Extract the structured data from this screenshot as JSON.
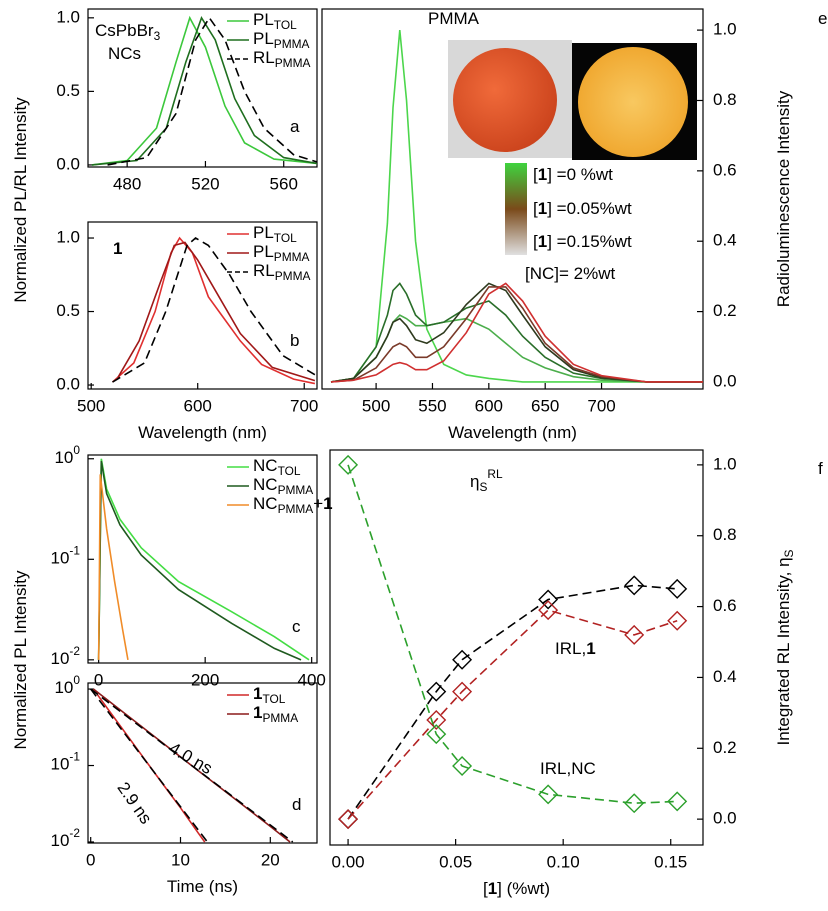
{
  "chart_data": [
    {
      "type": "line",
      "xlim": [
        460,
        577
      ],
      "xticks": [
        480,
        520,
        560
      ],
      "ylim": [
        -0.014,
        1.06
      ],
      "yticks": [
        {
          "value": 0,
          "label": "0.0"
        },
        {
          "value": 0.5,
          "label": "0.5"
        },
        {
          "value": 1,
          "label": "1.0"
        }
      ],
      "ylabel": [
        {
          "text": "Normalized PL/RL Intensity"
        }
      ],
      "legend": "upper right",
      "series": [
        {
          "name": [
            {
              "text": "PL"
            },
            {
              "text": "TOL",
              "style": "sub"
            }
          ],
          "color": "#3cc83c",
          "x": [
            462,
            480,
            495,
            505,
            512,
            520,
            530,
            540,
            555,
            577
          ],
          "values": [
            0,
            0.03,
            0.25,
            0.7,
            1.0,
            0.8,
            0.4,
            0.15,
            0.04,
            0.01
          ]
        },
        {
          "name": [
            {
              "text": "PL"
            },
            {
              "text": "PMMA",
              "style": "sub"
            }
          ],
          "color": "#1f6e1f",
          "x": [
            462,
            485,
            500,
            510,
            518,
            525,
            535,
            545,
            560,
            577
          ],
          "values": [
            0,
            0.03,
            0.25,
            0.7,
            1.0,
            0.85,
            0.45,
            0.2,
            0.05,
            0.01
          ]
        },
        {
          "name": [
            {
              "text": "RL"
            },
            {
              "text": "PMMA",
              "style": "sub"
            }
          ],
          "color": "#000000",
          "dash": true,
          "x": [
            470,
            490,
            505,
            515,
            522,
            530,
            540,
            550,
            565,
            577
          ],
          "values": [
            0,
            0.05,
            0.35,
            0.85,
            1.0,
            0.85,
            0.5,
            0.25,
            0.07,
            0.02
          ]
        }
      ],
      "annotations": [
        {
          "parts": [
            {
              "text": "CsPbBr"
            },
            {
              "text": "3",
              "style": "sub"
            }
          ]
        },
        {
          "parts": [
            {
              "text": "NCs"
            }
          ]
        },
        {
          "parts": [
            {
              "text": "a"
            }
          ]
        }
      ]
    },
    {
      "type": "line",
      "xlim": [
        497,
        712
      ],
      "xticks": [
        500,
        600,
        700
      ],
      "ylim": [
        -0.027,
        1.109
      ],
      "yticks": [
        {
          "value": 0,
          "label": "0.0"
        },
        {
          "value": 0.5,
          "label": "0.5"
        },
        {
          "value": 1,
          "label": "1.0"
        }
      ],
      "xlabel": [
        {
          "text": "Wavelength (nm)"
        }
      ],
      "legend": "upper right",
      "series": [
        {
          "name": [
            {
              "text": "PL"
            },
            {
              "text": "TOL",
              "style": "sub"
            }
          ],
          "color": "#e03030",
          "x": [
            520,
            540,
            560,
            575,
            583,
            595,
            610,
            625,
            640,
            660,
            690,
            710
          ],
          "values": [
            0.02,
            0.15,
            0.5,
            0.9,
            1.0,
            0.9,
            0.6,
            0.45,
            0.3,
            0.14,
            0.04,
            0.01
          ]
        },
        {
          "name": [
            {
              "text": "PL"
            },
            {
              "text": "PMMA",
              "style": "sub"
            }
          ],
          "color": "#a01818",
          "x": [
            525,
            545,
            565,
            578,
            588,
            600,
            620,
            640,
            670,
            710
          ],
          "values": [
            0.05,
            0.3,
            0.7,
            0.95,
            0.97,
            0.85,
            0.6,
            0.35,
            0.12,
            0.03
          ]
        },
        {
          "name": [
            {
              "text": "RL"
            },
            {
              "text": "PMMA",
              "style": "sub"
            }
          ],
          "color": "#000000",
          "dash": true,
          "x": [
            520,
            550,
            570,
            590,
            598,
            610,
            630,
            650,
            680,
            710
          ],
          "values": [
            0.02,
            0.15,
            0.5,
            0.95,
            1.0,
            0.95,
            0.75,
            0.5,
            0.2,
            0.07
          ]
        }
      ],
      "annotations": [
        {
          "parts": [
            {
              "text": "1",
              "style": "bold"
            }
          ]
        },
        {
          "parts": [
            {
              "text": "b"
            }
          ]
        }
      ]
    },
    {
      "type": "line",
      "xlim": [
        452,
        790
      ],
      "xticks": [
        500,
        550,
        600,
        650,
        700
      ],
      "y2lim": [
        -0.02,
        1.06
      ],
      "y2ticks": [
        {
          "value": 0,
          "label": "0.0"
        },
        {
          "value": 0.2,
          "label": "0.2"
        },
        {
          "value": 0.4,
          "label": "0.4"
        },
        {
          "value": 0.6,
          "label": "0.6"
        },
        {
          "value": 0.8,
          "label": "0.8"
        },
        {
          "value": 1,
          "label": "1.0"
        }
      ],
      "xlabel": [
        {
          "text": "Wavelength (nm)"
        }
      ],
      "y2label": [
        {
          "text": "Radioluminescence Intensity"
        }
      ],
      "x": [
        460,
        480,
        500,
        510,
        515,
        521,
        527,
        535,
        545,
        560,
        580,
        600,
        615,
        630,
        650,
        675,
        700,
        740,
        790
      ],
      "series": [
        {
          "color": "#4cd64c",
          "axis": "y2",
          "values": [
            0,
            0.01,
            0.1,
            0.45,
            0.78,
            1.0,
            0.8,
            0.4,
            0.15,
            0.05,
            0.02,
            0.01,
            0.005,
            0,
            0,
            0,
            0,
            0,
            0
          ]
        },
        {
          "color": "#4cae4c",
          "axis": "y2",
          "values": [
            0,
            0.01,
            0.07,
            0.13,
            0.17,
            0.19,
            0.18,
            0.16,
            0.16,
            0.17,
            0.18,
            0.15,
            0.11,
            0.07,
            0.04,
            0.015,
            0.005,
            0,
            0
          ]
        },
        {
          "color": "#2a6e2a",
          "axis": "y2",
          "values": [
            0,
            0.01,
            0.1,
            0.19,
            0.26,
            0.28,
            0.25,
            0.19,
            0.16,
            0.17,
            0.21,
            0.23,
            0.19,
            0.13,
            0.07,
            0.025,
            0.01,
            0,
            0
          ]
        },
        {
          "color": "#2e3a1e",
          "axis": "y2",
          "values": [
            0,
            0.01,
            0.07,
            0.13,
            0.17,
            0.18,
            0.16,
            0.12,
            0.11,
            0.14,
            0.22,
            0.28,
            0.26,
            0.19,
            0.1,
            0.035,
            0.012,
            0,
            0
          ]
        },
        {
          "color": "#7a3a2a",
          "axis": "y2",
          "values": [
            0,
            0.005,
            0.04,
            0.08,
            0.1,
            0.11,
            0.1,
            0.07,
            0.07,
            0.1,
            0.18,
            0.27,
            0.27,
            0.21,
            0.11,
            0.04,
            0.015,
            0,
            0
          ]
        },
        {
          "color": "#d03030",
          "axis": "y2",
          "values": [
            0,
            0.005,
            0.02,
            0.04,
            0.05,
            0.055,
            0.05,
            0.035,
            0.035,
            0.06,
            0.14,
            0.25,
            0.28,
            0.23,
            0.13,
            0.05,
            0.018,
            0,
            0
          ]
        }
      ],
      "annotations": [
        {
          "parts": [
            {
              "text": "PMMA"
            }
          ]
        },
        {
          "parts": [
            {
              "text": "["
            },
            {
              "text": "1",
              "style": "bold"
            },
            {
              "text": "] =0 %wt"
            }
          ]
        },
        {
          "parts": [
            {
              "text": "["
            },
            {
              "text": "1",
              "style": "bold"
            },
            {
              "text": "] =0.05%wt"
            }
          ]
        },
        {
          "parts": [
            {
              "text": "["
            },
            {
              "text": "1",
              "style": "bold"
            },
            {
              "text": "] =0.15%wt"
            }
          ]
        },
        {
          "parts": [
            {
              "text": "[NC]= 2%wt"
            }
          ]
        },
        {
          "parts": [
            {
              "text": "e"
            }
          ]
        }
      ]
    },
    {
      "type": "line",
      "ylog": true,
      "xlim": [
        -20,
        410
      ],
      "xticks": [
        0,
        200,
        400
      ],
      "ylim": [
        0.0093,
        1.09
      ],
      "yticks": [
        {
          "value": 1,
          "label": "10",
          "exponent": "0"
        },
        {
          "value": 0.1,
          "label": "10",
          "exponent": "-1"
        },
        {
          "value": 0.01,
          "label": "10",
          "exponent": "-2"
        }
      ],
      "ylabel": [
        {
          "text": "Normalized PL Intensity"
        }
      ],
      "legend": "upper right",
      "series": [
        {
          "name": [
            {
              "text": "NC"
            },
            {
              "text": "TOL",
              "style": "sub"
            }
          ],
          "color": "#44dd44",
          "x": [
            0,
            5,
            15,
            40,
            80,
            150,
            250,
            330,
            395
          ],
          "values": [
            0.01,
            1,
            0.5,
            0.25,
            0.13,
            0.06,
            0.03,
            0.017,
            0.01
          ]
        },
        {
          "name": [
            {
              "text": "NC"
            },
            {
              "text": "PMMA",
              "style": "sub"
            }
          ],
          "color": "#1f5a1f",
          "x": [
            0,
            5,
            15,
            40,
            80,
            150,
            250,
            330,
            380
          ],
          "values": [
            0.01,
            0.95,
            0.45,
            0.22,
            0.11,
            0.05,
            0.023,
            0.013,
            0.01
          ]
        },
        {
          "name": [
            {
              "text": "NC"
            },
            {
              "text": "PMMA",
              "style": "sub"
            },
            {
              "text": "+"
            },
            {
              "text": "1",
              "style": "bold"
            }
          ],
          "color": "#f08c28",
          "x": [
            0,
            3,
            15,
            30,
            45,
            55
          ],
          "values": [
            0.01,
            0.7,
            0.2,
            0.06,
            0.02,
            0.01
          ]
        }
      ],
      "annotations": [
        {
          "parts": [
            {
              "text": "c"
            }
          ]
        }
      ]
    },
    {
      "type": "line",
      "ylog": true,
      "xlim": [
        -0.3,
        25.2
      ],
      "xticks": [
        0,
        10,
        20
      ],
      "ylim": [
        0.0097,
        1.2
      ],
      "yticks": [
        {
          "value": 1,
          "label": "10",
          "exponent": "0"
        },
        {
          "value": 0.1,
          "label": "10",
          "exponent": "-1"
        },
        {
          "value": 0.01,
          "label": "10",
          "exponent": "-2"
        }
      ],
      "xlabel": [
        {
          "text": "Time (ns)"
        }
      ],
      "legend": "upper right",
      "series": [
        {
          "name": [
            {
              "text": "1",
              "style": "bold"
            },
            {
              "text": "TOL",
              "style": "sub"
            }
          ],
          "color": "#d02828",
          "x": [
            0.3,
            2,
            4,
            6,
            8,
            10,
            12,
            12.7
          ],
          "values": [
            1,
            0.53,
            0.254,
            0.121,
            0.058,
            0.028,
            0.013,
            0.01
          ]
        },
        {
          "name": [
            {
              "text": "1",
              "style": "bold"
            },
            {
              "text": "PMMA",
              "style": "sub"
            }
          ],
          "color": "#8b1a1a",
          "x": [
            0.3,
            4,
            8,
            12,
            16,
            20,
            22.2
          ],
          "values": [
            1,
            0.46,
            0.198,
            0.085,
            0.037,
            0.016,
            0.01
          ]
        },
        {
          "color": "#000000",
          "dash": true,
          "x": [
            0,
            22.5
          ],
          "values": [
            1,
            0.01
          ]
        },
        {
          "color": "#000000",
          "dash": true,
          "x": [
            0,
            13
          ],
          "values": [
            1,
            0.01
          ]
        }
      ],
      "annotations": [
        {
          "parts": [
            {
              "text": "4.0 ns"
            }
          ]
        },
        {
          "parts": [
            {
              "text": "2.9 ns"
            }
          ]
        },
        {
          "parts": [
            {
              "text": "d"
            }
          ]
        }
      ]
    },
    {
      "type": "line",
      "xlim": [
        -0.0084,
        0.165
      ],
      "xticks": [
        {
          "value": 0,
          "label": "0.00"
        },
        {
          "value": 0.05,
          "label": "0.05"
        },
        {
          "value": 0.1,
          "label": "0.10"
        },
        {
          "value": 0.15,
          "label": "0.15"
        }
      ],
      "y2lim": [
        -0.073,
        1.042
      ],
      "y2ticks": [
        {
          "value": 0,
          "label": "0.0"
        },
        {
          "value": 0.2,
          "label": "0.2"
        },
        {
          "value": 0.4,
          "label": "0.4"
        },
        {
          "value": 0.6,
          "label": "0.6"
        },
        {
          "value": 0.8,
          "label": "0.8"
        },
        {
          "value": 1,
          "label": "1.0"
        }
      ],
      "xlabel": [
        {
          "text": "["
        },
        {
          "text": "1",
          "style": "bold"
        },
        {
          "text": "] (%wt)"
        }
      ],
      "y2label": [
        {
          "text": "Integrated RL Intensity, η"
        },
        {
          "text": "S",
          "style": "sub"
        }
      ],
      "series": [
        {
          "color": "#000000",
          "axis": "y2",
          "dash": true,
          "marker": "diamond",
          "x": [
            0,
            0.041,
            0.053,
            0.093,
            0.133,
            0.153
          ],
          "values": [
            0,
            0.36,
            0.45,
            0.62,
            0.66,
            0.65
          ]
        },
        {
          "color": "#b22222",
          "axis": "y2",
          "dash": true,
          "marker": "diamond",
          "x": [
            0,
            0.041,
            0.053,
            0.093,
            0.133,
            0.153
          ],
          "values": [
            0,
            0.28,
            0.36,
            0.59,
            0.52,
            0.56
          ]
        },
        {
          "color": "#2ca02c",
          "axis": "y2",
          "dash": true,
          "marker": "diamond",
          "x": [
            0,
            0.041,
            0.053,
            0.093,
            0.133,
            0.153
          ],
          "values": [
            1.0,
            0.24,
            0.15,
            0.07,
            0.045,
            0.05
          ]
        }
      ],
      "annotations": [
        {
          "parts": [
            {
              "text": "η"
            },
            {
              "text": "S",
              "style": "sub"
            },
            {
              "text": "RL",
              "style": "sup"
            }
          ],
          "color": "#000000"
        },
        {
          "parts": [
            {
              "text": "I"
            },
            {
              "text": "RL,"
            },
            {
              "text": "1",
              "style": "bold"
            }
          ],
          "color": "#b22222"
        },
        {
          "parts": [
            {
              "text": "I"
            },
            {
              "text": "RL,NC"
            }
          ],
          "color": "#2ca02c"
        },
        {
          "parts": [
            {
              "text": "f"
            }
          ]
        }
      ]
    }
  ]
}
